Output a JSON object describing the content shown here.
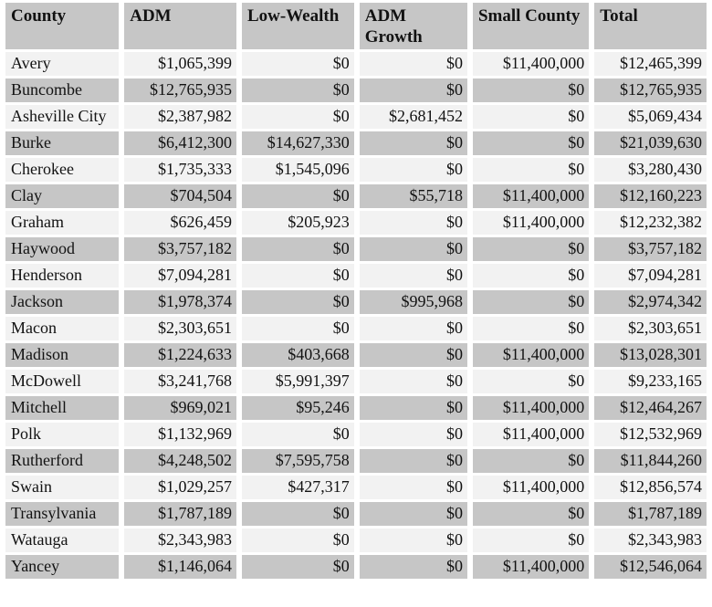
{
  "table": {
    "columns": [
      "County",
      "ADM",
      "Low-Wealth",
      "ADM Growth",
      "Small County",
      "Total"
    ],
    "rows": [
      {
        "county": "Avery",
        "values": [
          "$1,065,399",
          "$0",
          "$0",
          "$11,400,000",
          "$12,465,399"
        ]
      },
      {
        "county": "Buncombe",
        "values": [
          "$12,765,935",
          "$0",
          "$0",
          "$0",
          "$12,765,935"
        ]
      },
      {
        "county": "Asheville City",
        "values": [
          "$2,387,982",
          "$0",
          "$2,681,452",
          "$0",
          "$5,069,434"
        ]
      },
      {
        "county": "Burke",
        "values": [
          "$6,412,300",
          "$14,627,330",
          "$0",
          "$0",
          "$21,039,630"
        ]
      },
      {
        "county": "Cherokee",
        "values": [
          "$1,735,333",
          "$1,545,096",
          "$0",
          "$0",
          "$3,280,430"
        ]
      },
      {
        "county": "Clay",
        "values": [
          "$704,504",
          "$0",
          "$55,718",
          "$11,400,000",
          "$12,160,223"
        ]
      },
      {
        "county": "Graham",
        "values": [
          "$626,459",
          "$205,923",
          "$0",
          "$11,400,000",
          "$12,232,382"
        ]
      },
      {
        "county": "Haywood",
        "values": [
          "$3,757,182",
          "$0",
          "$0",
          "$0",
          "$3,757,182"
        ]
      },
      {
        "county": "Henderson",
        "values": [
          "$7,094,281",
          "$0",
          "$0",
          "$0",
          "$7,094,281"
        ]
      },
      {
        "county": "Jackson",
        "values": [
          "$1,978,374",
          "$0",
          "$995,968",
          "$0",
          "$2,974,342"
        ]
      },
      {
        "county": "Macon",
        "values": [
          "$2,303,651",
          "$0",
          "$0",
          "$0",
          "$2,303,651"
        ]
      },
      {
        "county": "Madison",
        "values": [
          "$1,224,633",
          "$403,668",
          "$0",
          "$11,400,000",
          "$13,028,301"
        ]
      },
      {
        "county": "McDowell",
        "values": [
          "$3,241,768",
          "$5,991,397",
          "$0",
          "$0",
          "$9,233,165"
        ]
      },
      {
        "county": "Mitchell",
        "values": [
          "$969,021",
          "$95,246",
          "$0",
          "$11,400,000",
          "$12,464,267"
        ]
      },
      {
        "county": "Polk",
        "values": [
          "$1,132,969",
          "$0",
          "$0",
          "$11,400,000",
          "$12,532,969"
        ]
      },
      {
        "county": "Rutherford",
        "values": [
          "$4,248,502",
          "$7,595,758",
          "$0",
          "$0",
          "$11,844,260"
        ]
      },
      {
        "county": "Swain",
        "values": [
          "$1,029,257",
          "$427,317",
          "$0",
          "$11,400,000",
          "$12,856,574"
        ]
      },
      {
        "county": "Transylvania",
        "values": [
          "$1,787,189",
          "$0",
          "$0",
          "$0",
          "$1,787,189"
        ]
      },
      {
        "county": "Watauga",
        "values": [
          "$2,343,983",
          "$0",
          "$0",
          "$0",
          "$2,343,983"
        ]
      },
      {
        "county": "Yancey",
        "values": [
          "$1,146,064",
          "$0",
          "$0",
          "$11,400,000",
          "$12,546,064"
        ]
      }
    ]
  },
  "colors": {
    "header_bg": "#c6c6c6",
    "shaded_row_bg": "#c6c6c6",
    "light_row_bg": "#f2f2f2",
    "gap": "#ffffff",
    "text": "#121212"
  }
}
